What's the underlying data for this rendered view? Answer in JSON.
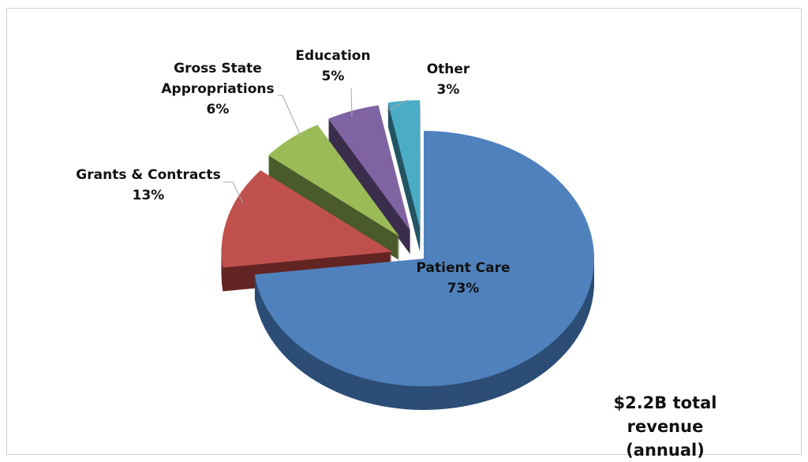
{
  "chart_data": {
    "type": "pie",
    "style": "3d-exploded",
    "title": "",
    "slices": [
      {
        "label": "Patient Care",
        "value": 73,
        "display": "73%",
        "color": "#4f81bd",
        "side": "#2c4d75"
      },
      {
        "label": "Grants & Contracts",
        "value": 13,
        "display": "13%",
        "color": "#c0504d",
        "side": "#632523"
      },
      {
        "label": "Gross State Appropriations",
        "label_lines": [
          "Gross State",
          "Appropriations"
        ],
        "value": 6,
        "display": "6%",
        "color": "#9bbb59",
        "side": "#4a5a2b"
      },
      {
        "label": "Education",
        "value": 5,
        "display": "5%",
        "color": "#8064a2",
        "side": "#3b2e4d"
      },
      {
        "label": "Other",
        "value": 3,
        "display": "3%",
        "color": "#4bacc6",
        "side": "#245562"
      }
    ],
    "annotation": [
      "$2.2B total revenue",
      "(annual)"
    ],
    "legend": "none"
  }
}
